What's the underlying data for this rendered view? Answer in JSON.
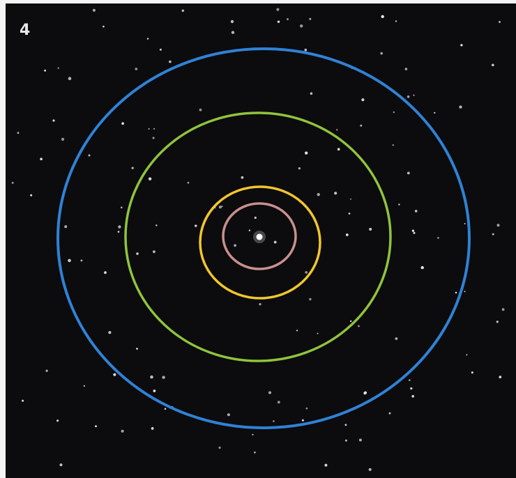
{
  "label": "4"
}
